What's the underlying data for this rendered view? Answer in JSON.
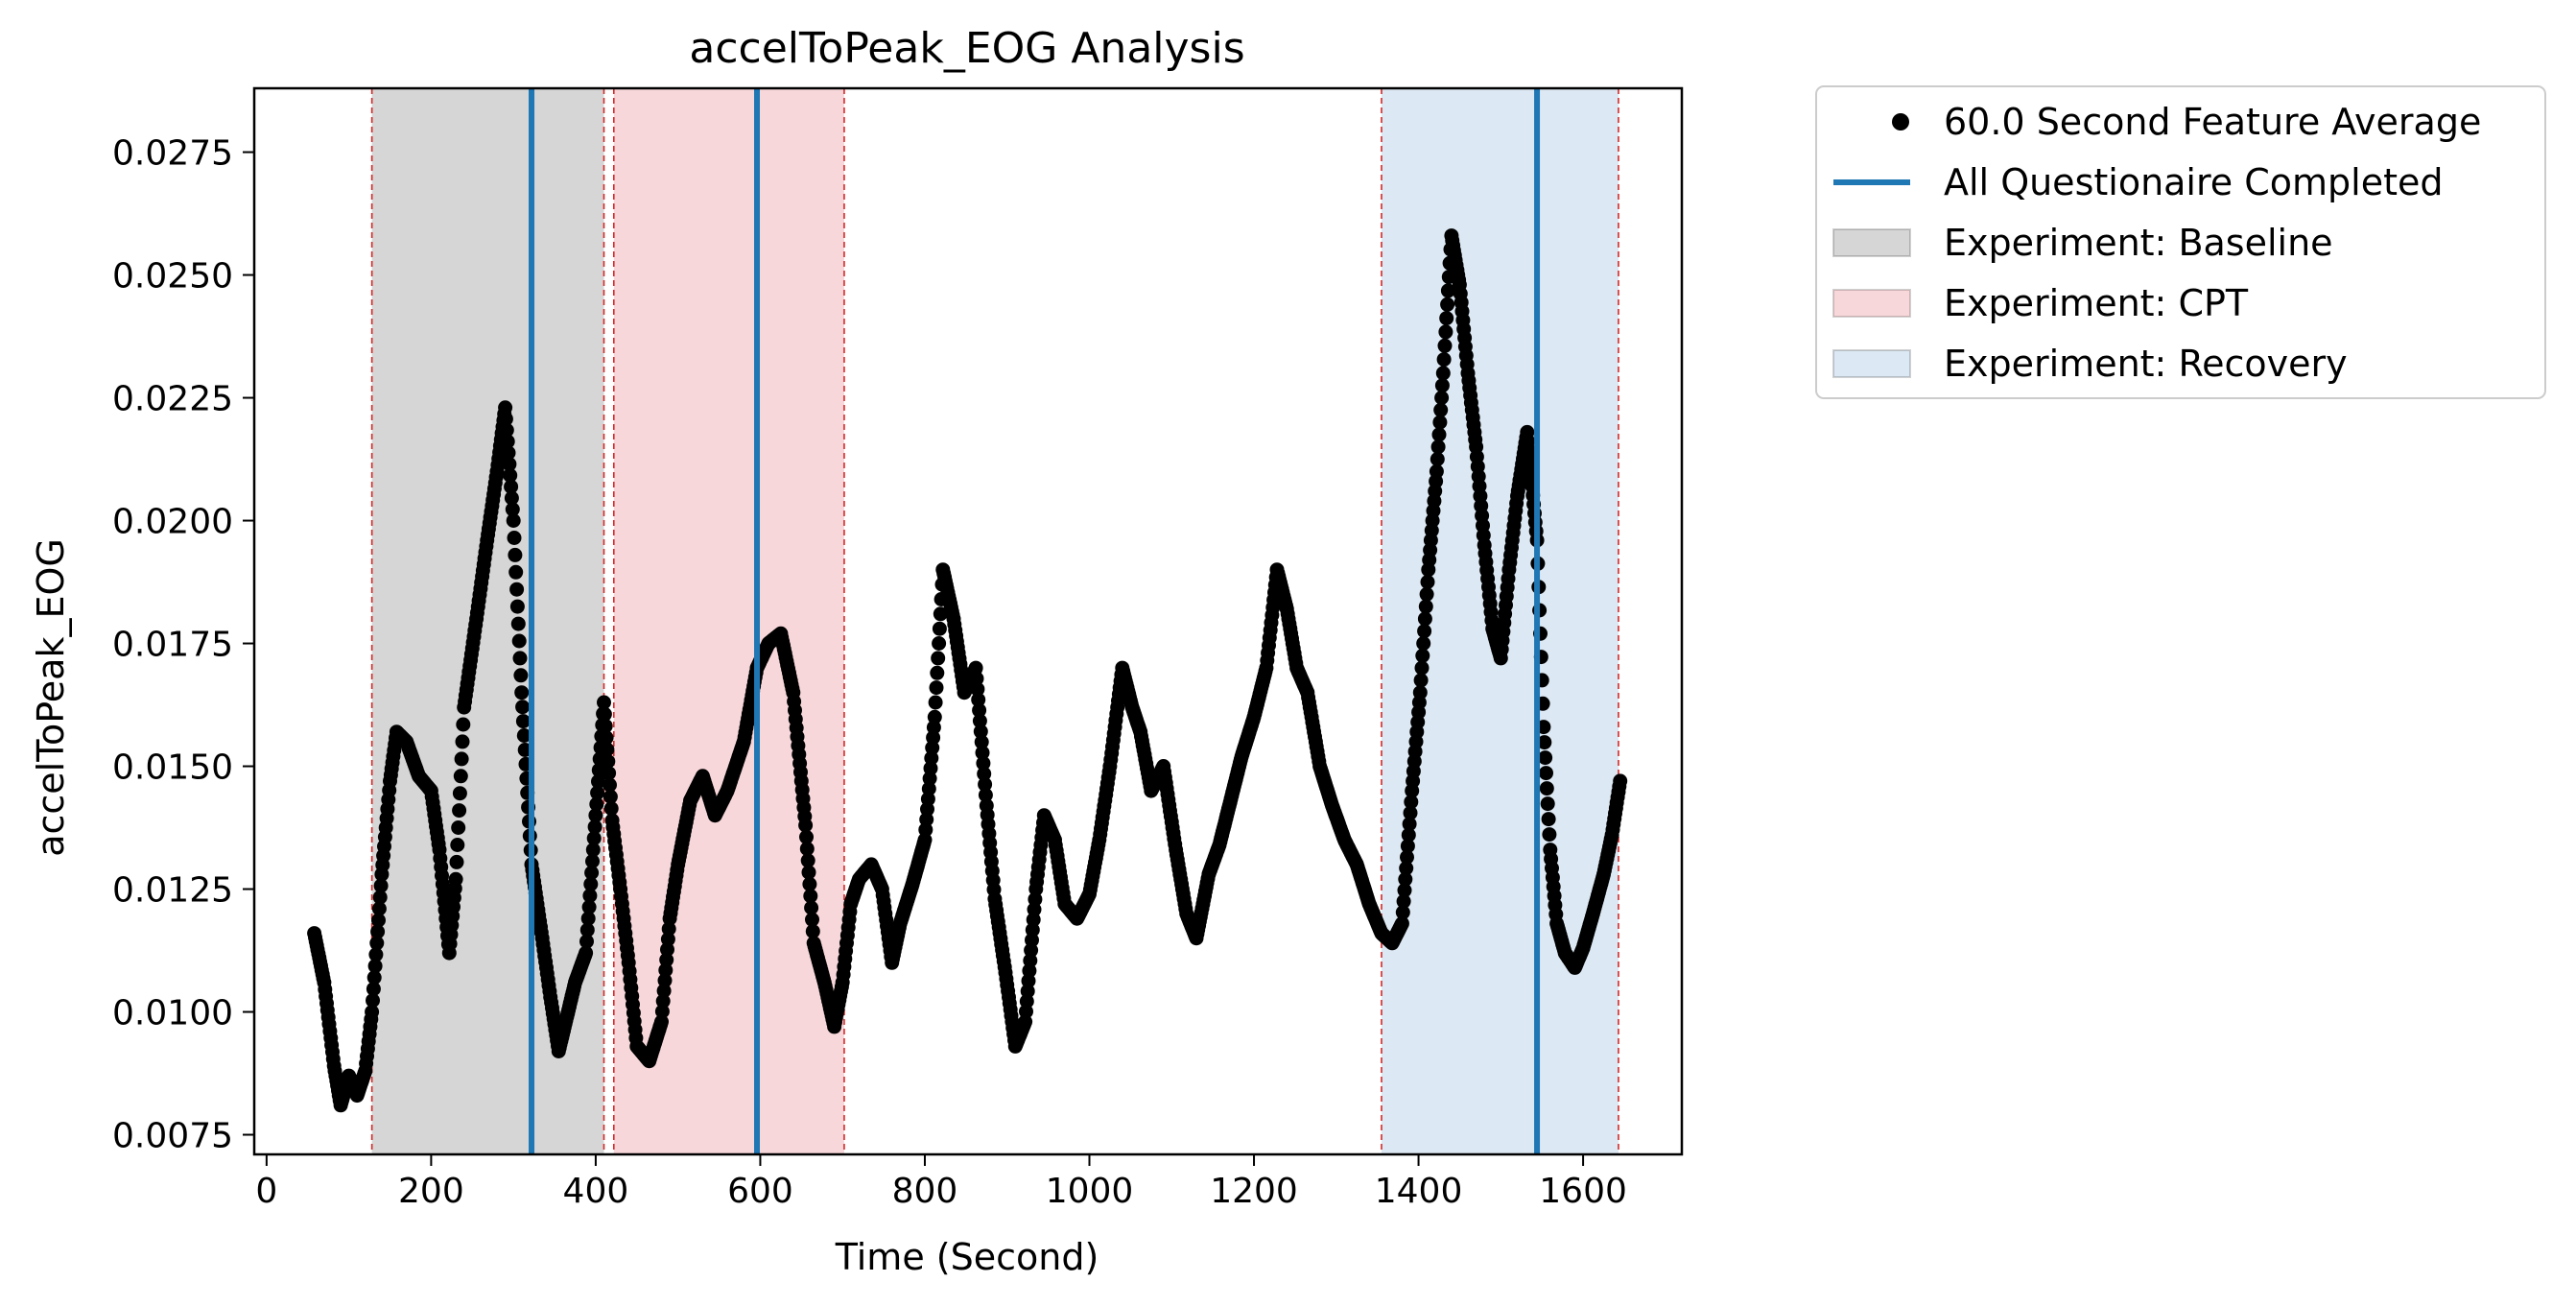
{
  "chart_data": {
    "type": "scatter",
    "title": "accelToPeak_EOG Analysis",
    "xlabel": "Time (Second)",
    "ylabel": "accelToPeak_EOG",
    "xlim": [
      -15,
      1720
    ],
    "ylim": [
      0.0071,
      0.0288
    ],
    "x_ticks": [
      0,
      200,
      400,
      600,
      800,
      1000,
      1200,
      1400,
      1600
    ],
    "y_ticks": [
      0.0075,
      0.01,
      0.0125,
      0.015,
      0.0175,
      0.02,
      0.0225,
      0.025,
      0.0275
    ],
    "y_tick_labels": [
      "0.0075",
      "0.0100",
      "0.0125",
      "0.0150",
      "0.0175",
      "0.0200",
      "0.0225",
      "0.0250",
      "0.0275"
    ],
    "grid": false,
    "legend_position": "outside-top-right",
    "legend": [
      {
        "type": "marker",
        "label": "60.0 Second Feature Average",
        "color": "#000000"
      },
      {
        "type": "line",
        "label": "All Questionaire Completed",
        "color": "#1f77b4"
      },
      {
        "type": "patch",
        "label": "Experiment: Baseline",
        "color": "#d6d6d6"
      },
      {
        "type": "patch",
        "label": "Experiment: CPT",
        "color": "#f8d7da"
      },
      {
        "type": "patch",
        "label": "Experiment: Recovery",
        "color": "#dce8f3"
      }
    ],
    "regions": [
      {
        "name": "Experiment: Baseline",
        "x0": 128,
        "x1": 410,
        "color": "#d6d6d6"
      },
      {
        "name": "Experiment: CPT",
        "x0": 422,
        "x1": 702,
        "color": "#f8d7da"
      },
      {
        "name": "Experiment: Recovery",
        "x0": 1355,
        "x1": 1643,
        "color": "#dce8f3"
      }
    ],
    "region_boundaries": [
      128,
      410,
      422,
      702,
      1355,
      1643
    ],
    "boundary_color": "#d62728",
    "questionnaire_lines": [
      322,
      596,
      1544
    ],
    "questionnaire_color": "#1f77b4",
    "series": [
      {
        "name": "60.0 Second Feature Average",
        "color": "#000000",
        "keypoints": [
          [
            58,
            0.0116
          ],
          [
            70,
            0.0106
          ],
          [
            82,
            0.0089
          ],
          [
            90,
            0.0081
          ],
          [
            100,
            0.0087
          ],
          [
            110,
            0.0083
          ],
          [
            120,
            0.0088
          ],
          [
            128,
            0.01
          ],
          [
            140,
            0.0128
          ],
          [
            150,
            0.0147
          ],
          [
            158,
            0.0157
          ],
          [
            170,
            0.0155
          ],
          [
            185,
            0.0148
          ],
          [
            200,
            0.0145
          ],
          [
            210,
            0.0133
          ],
          [
            222,
            0.0112
          ],
          [
            230,
            0.0127
          ],
          [
            240,
            0.0162
          ],
          [
            255,
            0.018
          ],
          [
            268,
            0.0196
          ],
          [
            280,
            0.021
          ],
          [
            290,
            0.0223
          ],
          [
            300,
            0.02
          ],
          [
            310,
            0.0165
          ],
          [
            322,
            0.013
          ],
          [
            335,
            0.0115
          ],
          [
            345,
            0.0103
          ],
          [
            355,
            0.0092
          ],
          [
            365,
            0.0099
          ],
          [
            375,
            0.0106
          ],
          [
            388,
            0.0112
          ],
          [
            400,
            0.014
          ],
          [
            410,
            0.0163
          ],
          [
            420,
            0.0139
          ],
          [
            430,
            0.0125
          ],
          [
            440,
            0.011
          ],
          [
            450,
            0.0093
          ],
          [
            465,
            0.009
          ],
          [
            480,
            0.0098
          ],
          [
            490,
            0.0119
          ],
          [
            500,
            0.013
          ],
          [
            515,
            0.0143
          ],
          [
            530,
            0.0148
          ],
          [
            545,
            0.014
          ],
          [
            560,
            0.0145
          ],
          [
            580,
            0.0155
          ],
          [
            596,
            0.017
          ],
          [
            610,
            0.0175
          ],
          [
            625,
            0.0177
          ],
          [
            640,
            0.0165
          ],
          [
            655,
            0.0138
          ],
          [
            665,
            0.0114
          ],
          [
            678,
            0.0106
          ],
          [
            690,
            0.0097
          ],
          [
            700,
            0.0106
          ],
          [
            710,
            0.0122
          ],
          [
            720,
            0.0127
          ],
          [
            735,
            0.013
          ],
          [
            748,
            0.0125
          ],
          [
            760,
            0.011
          ],
          [
            770,
            0.0118
          ],
          [
            785,
            0.0126
          ],
          [
            800,
            0.0135
          ],
          [
            812,
            0.016
          ],
          [
            822,
            0.019
          ],
          [
            835,
            0.018
          ],
          [
            848,
            0.0165
          ],
          [
            862,
            0.017
          ],
          [
            875,
            0.0142
          ],
          [
            885,
            0.0123
          ],
          [
            898,
            0.0108
          ],
          [
            910,
            0.0093
          ],
          [
            922,
            0.0098
          ],
          [
            935,
            0.0125
          ],
          [
            945,
            0.014
          ],
          [
            958,
            0.0135
          ],
          [
            970,
            0.0122
          ],
          [
            985,
            0.0119
          ],
          [
            1000,
            0.0124
          ],
          [
            1012,
            0.0135
          ],
          [
            1025,
            0.015
          ],
          [
            1040,
            0.017
          ],
          [
            1052,
            0.0162
          ],
          [
            1062,
            0.0157
          ],
          [
            1075,
            0.0145
          ],
          [
            1090,
            0.015
          ],
          [
            1105,
            0.0133
          ],
          [
            1118,
            0.012
          ],
          [
            1130,
            0.0115
          ],
          [
            1145,
            0.0128
          ],
          [
            1158,
            0.0134
          ],
          [
            1170,
            0.0142
          ],
          [
            1185,
            0.0152
          ],
          [
            1200,
            0.016
          ],
          [
            1215,
            0.017
          ],
          [
            1228,
            0.019
          ],
          [
            1240,
            0.0182
          ],
          [
            1252,
            0.017
          ],
          [
            1265,
            0.0165
          ],
          [
            1280,
            0.015
          ],
          [
            1295,
            0.0142
          ],
          [
            1310,
            0.0135
          ],
          [
            1325,
            0.013
          ],
          [
            1340,
            0.0122
          ],
          [
            1355,
            0.0116
          ],
          [
            1368,
            0.0114
          ],
          [
            1380,
            0.0118
          ],
          [
            1392,
            0.0145
          ],
          [
            1402,
            0.0165
          ],
          [
            1412,
            0.019
          ],
          [
            1422,
            0.021
          ],
          [
            1430,
            0.023
          ],
          [
            1440,
            0.0258
          ],
          [
            1450,
            0.0248
          ],
          [
            1460,
            0.023
          ],
          [
            1470,
            0.0215
          ],
          [
            1480,
            0.0195
          ],
          [
            1490,
            0.0178
          ],
          [
            1500,
            0.0172
          ],
          [
            1510,
            0.019
          ],
          [
            1520,
            0.0205
          ],
          [
            1532,
            0.0218
          ],
          [
            1544,
            0.0196
          ],
          [
            1552,
            0.0158
          ],
          [
            1560,
            0.0133
          ],
          [
            1568,
            0.0118
          ],
          [
            1578,
            0.0112
          ],
          [
            1590,
            0.0109
          ],
          [
            1600,
            0.0113
          ],
          [
            1612,
            0.012
          ],
          [
            1625,
            0.0128
          ],
          [
            1635,
            0.0136
          ],
          [
            1645,
            0.0147
          ]
        ]
      }
    ]
  }
}
